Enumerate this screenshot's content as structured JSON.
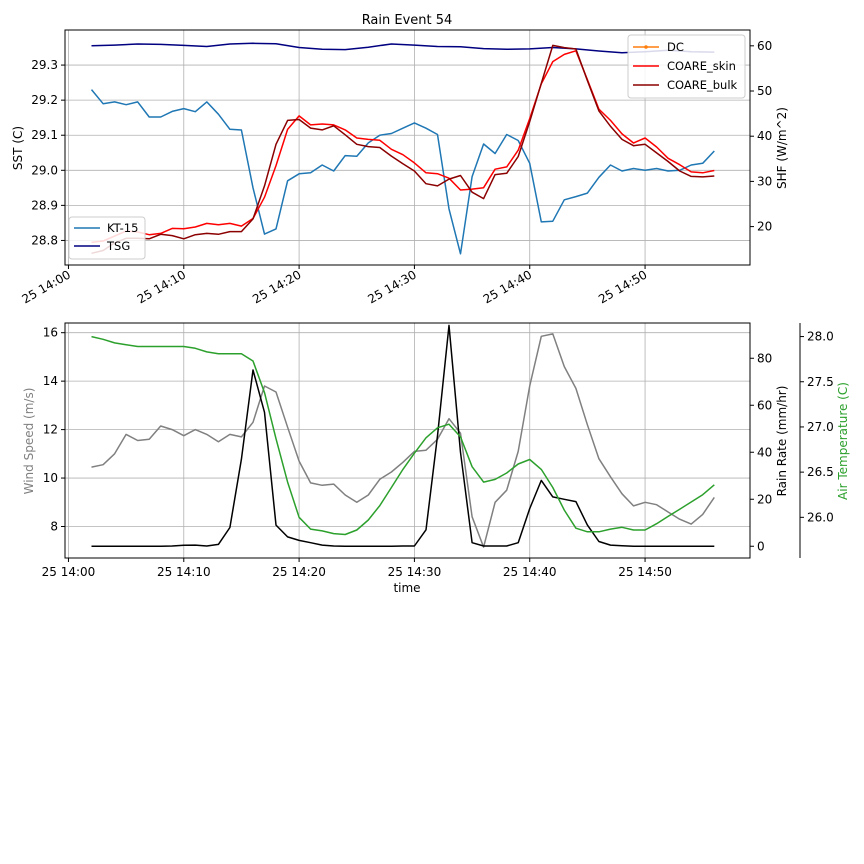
{
  "chart_data": [
    {
      "type": "line",
      "title": "Rain Event 54",
      "x_ticks": [
        "25 14:00",
        "25 14:10",
        "25 14:20",
        "25 14:30",
        "25 14:40",
        "25 14:50"
      ],
      "left_axis": {
        "label": "SST (C)",
        "ylim": [
          28.73,
          29.4
        ],
        "ticks": [
          28.8,
          28.9,
          29.0,
          29.1,
          29.2,
          29.3
        ]
      },
      "right_axis": {
        "label": "SHF (W/m^2)",
        "ylim": [
          11.5,
          63.5
        ],
        "ticks": [
          20,
          30,
          40,
          50,
          60
        ]
      },
      "grid": true,
      "legends": [
        {
          "placement": "lower-left",
          "entries": [
            "KT-15",
            "TSG"
          ]
        },
        {
          "placement": "upper-right",
          "entries": [
            "DC",
            "COARE_skin",
            "COARE_bulk"
          ]
        }
      ],
      "series": [
        {
          "name": "KT-15",
          "axis": "left",
          "color": "#1f77b4",
          "x": [
            2,
            3,
            4,
            5,
            6,
            7,
            8,
            9,
            10,
            11,
            12,
            13,
            14,
            15,
            16,
            17,
            18,
            19,
            20,
            21,
            22,
            23,
            24,
            25,
            26,
            27,
            28,
            29,
            30,
            31,
            32,
            33,
            34,
            35,
            36,
            37,
            38,
            39,
            40,
            41,
            42,
            43,
            44,
            45,
            46,
            47,
            48,
            49,
            50,
            51,
            52,
            53,
            54,
            55,
            56
          ],
          "values": [
            29.23,
            29.19,
            29.195,
            29.187,
            29.195,
            29.152,
            29.152,
            29.168,
            29.176,
            29.167,
            29.195,
            29.16,
            29.117,
            29.115,
            28.95,
            28.818,
            28.833,
            28.97,
            28.99,
            28.993,
            29.015,
            28.998,
            29.042,
            29.04,
            29.078,
            29.1,
            29.105,
            29.12,
            29.135,
            29.12,
            29.102,
            28.89,
            28.762,
            28.982,
            29.075,
            29.048,
            29.102,
            29.085,
            29.02,
            28.853,
            28.855,
            28.916,
            28.925,
            28.935,
            28.98,
            29.015,
            28.998,
            29.005,
            29.0,
            29.005,
            28.998,
            29.0,
            29.015,
            29.02,
            29.055
          ]
        },
        {
          "name": "TSG",
          "axis": "left",
          "color": "#000080",
          "x": [
            2,
            4,
            6,
            8,
            10,
            12,
            14,
            16,
            18,
            20,
            22,
            24,
            26,
            28,
            30,
            32,
            34,
            36,
            38,
            40,
            42,
            44,
            46,
            48,
            50,
            52,
            54,
            56
          ],
          "values": [
            29.355,
            29.357,
            29.36,
            29.359,
            29.356,
            29.353,
            29.36,
            29.362,
            29.361,
            29.35,
            29.345,
            29.344,
            29.351,
            29.36,
            29.357,
            29.353,
            29.352,
            29.347,
            29.345,
            29.346,
            29.35,
            29.346,
            29.34,
            29.335,
            29.338,
            29.342,
            29.338,
            29.337
          ]
        },
        {
          "name": "DC",
          "axis": "right",
          "color": "#ff7f0e",
          "x": [],
          "values": []
        },
        {
          "name": "COARE_skin",
          "axis": "right",
          "color": "#ff0000",
          "x": [
            2,
            3,
            4,
            5,
            6,
            7,
            8,
            9,
            10,
            11,
            12,
            13,
            14,
            15,
            16,
            17,
            18,
            19,
            20,
            21,
            22,
            23,
            24,
            25,
            26,
            27,
            28,
            29,
            30,
            31,
            32,
            33,
            34,
            35,
            36,
            37,
            38,
            39,
            40,
            41,
            42,
            43,
            44,
            45,
            46,
            47,
            48,
            49,
            50,
            51,
            52,
            53,
            54,
            55,
            56
          ],
          "values": [
            16.5,
            16.8,
            17.9,
            19.0,
            18.8,
            18.2,
            18.5,
            19.6,
            19.5,
            19.9,
            20.7,
            20.4,
            20.7,
            20.1,
            21.8,
            26.5,
            33.5,
            41.5,
            44.5,
            42.5,
            42.7,
            42.5,
            41.4,
            39.6,
            39.3,
            39.1,
            37.1,
            35.9,
            34.1,
            31.9,
            31.7,
            30.7,
            28.1,
            28.3,
            28.6,
            32.7,
            33.2,
            36.9,
            43.9,
            51.6,
            56.5,
            58.1,
            58.9,
            52.5,
            46.0,
            43.5,
            40.5,
            38.5,
            39.6,
            37.6,
            35.1,
            33.7,
            32.1,
            31.9,
            32.4
          ]
        },
        {
          "name": "COARE_bulk",
          "axis": "right",
          "color": "#8b0000",
          "x": [
            2,
            3,
            4,
            5,
            6,
            7,
            8,
            9,
            10,
            11,
            12,
            13,
            14,
            15,
            16,
            17,
            18,
            19,
            20,
            21,
            22,
            23,
            24,
            25,
            26,
            27,
            28,
            29,
            30,
            31,
            32,
            33,
            34,
            35,
            36,
            37,
            38,
            39,
            40,
            41,
            42,
            43,
            44,
            45,
            46,
            47,
            48,
            49,
            50,
            51,
            52,
            53,
            54,
            55,
            56
          ],
          "values": [
            14.1,
            14.7,
            16.4,
            17.4,
            17.4,
            17.3,
            18.3,
            18.0,
            17.3,
            18.2,
            18.5,
            18.3,
            18.9,
            18.9,
            21.7,
            29.0,
            38.2,
            43.5,
            43.7,
            41.8,
            41.4,
            42.3,
            40.3,
            38.2,
            37.7,
            37.5,
            35.6,
            33.9,
            32.3,
            29.5,
            29.0,
            30.5,
            31.3,
            27.6,
            26.2,
            31.5,
            31.8,
            35.5,
            43.2,
            51.7,
            60.1,
            59.6,
            59.3,
            52.3,
            45.6,
            42.2,
            39.3,
            37.9,
            38.2,
            36.3,
            34.4,
            32.3,
            31.1,
            31.0,
            31.2
          ]
        }
      ]
    },
    {
      "type": "line",
      "xlabel": "time",
      "x_ticks": [
        "25 14:00",
        "25 14:10",
        "25 14:20",
        "25 14:30",
        "25 14:40",
        "25 14:50"
      ],
      "grid": true,
      "axes": [
        {
          "name": "left",
          "label": "Wind Speed (m/s)",
          "color": "#808080",
          "ylim": [
            6.7,
            16.4
          ],
          "ticks": [
            8,
            10,
            12,
            14,
            16
          ]
        },
        {
          "name": "right1",
          "label": "Rain Rate (mm/hr)",
          "color": "#000000",
          "ylim": [
            -5,
            95
          ],
          "ticks": [
            0,
            20,
            40,
            60,
            80
          ]
        },
        {
          "name": "right2",
          "label": "Air Temperature (C)",
          "color": "#2ca02c",
          "ylim": [
            25.55,
            28.15
          ],
          "ticks": [
            26.0,
            26.5,
            27.0,
            27.5,
            28.0
          ]
        }
      ],
      "series": [
        {
          "name": "Wind Speed",
          "axis": "left",
          "color": "#808080",
          "x": [
            2,
            3,
            4,
            5,
            6,
            7,
            8,
            9,
            10,
            11,
            12,
            13,
            14,
            15,
            16,
            17,
            18,
            19,
            20,
            21,
            22,
            23,
            24,
            25,
            26,
            27,
            28,
            29,
            30,
            31,
            32,
            33,
            34,
            35,
            36,
            37,
            38,
            39,
            40,
            41,
            42,
            43,
            44,
            45,
            46,
            47,
            48,
            49,
            50,
            51,
            52,
            53,
            54,
            55,
            56
          ],
          "values": [
            10.45,
            10.55,
            11.0,
            11.8,
            11.55,
            11.6,
            12.15,
            12.0,
            11.75,
            12.0,
            11.8,
            11.5,
            11.8,
            11.7,
            12.3,
            13.8,
            13.55,
            12.1,
            10.7,
            9.8,
            9.7,
            9.75,
            9.3,
            9.0,
            9.3,
            9.95,
            10.25,
            10.65,
            11.1,
            11.15,
            11.6,
            12.45,
            11.85,
            8.4,
            7.15,
            9.0,
            9.5,
            11.1,
            13.8,
            15.85,
            15.95,
            14.6,
            13.7,
            12.2,
            10.8,
            10.05,
            9.35,
            8.85,
            9.0,
            8.9,
            8.6,
            8.3,
            8.1,
            8.5,
            9.2
          ]
        },
        {
          "name": "Rain Rate",
          "axis": "right1",
          "color": "#000000",
          "x": [
            2,
            3,
            4,
            5,
            6,
            7,
            8,
            9,
            10,
            11,
            12,
            13,
            14,
            15,
            16,
            17,
            18,
            19,
            20,
            21,
            22,
            23,
            24,
            25,
            26,
            27,
            28,
            29,
            30,
            31,
            32,
            33,
            34,
            35,
            36,
            37,
            38,
            39,
            40,
            41,
            42,
            43,
            44,
            45,
            46,
            47,
            48,
            49,
            50,
            51,
            52,
            53,
            54,
            55,
            56
          ],
          "values": [
            0,
            0,
            0,
            0,
            0,
            0,
            0,
            0.1,
            0.4,
            0.5,
            0.1,
            0.8,
            8,
            37,
            75,
            57,
            9,
            4,
            2.5,
            1.5,
            0.5,
            0.1,
            0,
            0,
            0,
            0,
            0,
            0.1,
            0.1,
            7,
            47,
            94,
            40,
            1.5,
            0.1,
            0.1,
            0.1,
            1.5,
            16,
            28,
            21,
            20,
            19,
            9,
            2,
            0.5,
            0.2,
            0,
            0,
            0,
            0,
            0,
            0,
            0,
            0
          ]
        },
        {
          "name": "Air Temperature",
          "axis": "right2",
          "color": "#2ca02c",
          "x": [
            2,
            3,
            4,
            5,
            6,
            7,
            8,
            9,
            10,
            11,
            12,
            13,
            14,
            15,
            16,
            17,
            18,
            19,
            20,
            21,
            22,
            23,
            24,
            25,
            26,
            27,
            28,
            29,
            30,
            31,
            32,
            33,
            34,
            35,
            36,
            37,
            38,
            39,
            40,
            41,
            42,
            43,
            44,
            45,
            46,
            47,
            48,
            49,
            50,
            51,
            52,
            53,
            54,
            55,
            56
          ],
          "values": [
            28.0,
            27.97,
            27.93,
            27.91,
            27.89,
            27.89,
            27.89,
            27.89,
            27.89,
            27.87,
            27.83,
            27.81,
            27.81,
            27.81,
            27.73,
            27.38,
            26.87,
            26.39,
            26.0,
            25.87,
            25.85,
            25.82,
            25.81,
            25.86,
            25.97,
            26.13,
            26.33,
            26.53,
            26.71,
            26.88,
            26.99,
            27.03,
            26.89,
            26.56,
            26.39,
            26.42,
            26.49,
            26.59,
            26.64,
            26.53,
            26.33,
            26.08,
            25.88,
            25.84,
            25.84,
            25.87,
            25.89,
            25.86,
            25.86,
            25.93,
            26.01,
            26.09,
            26.17,
            26.25,
            26.36
          ]
        }
      ]
    }
  ]
}
